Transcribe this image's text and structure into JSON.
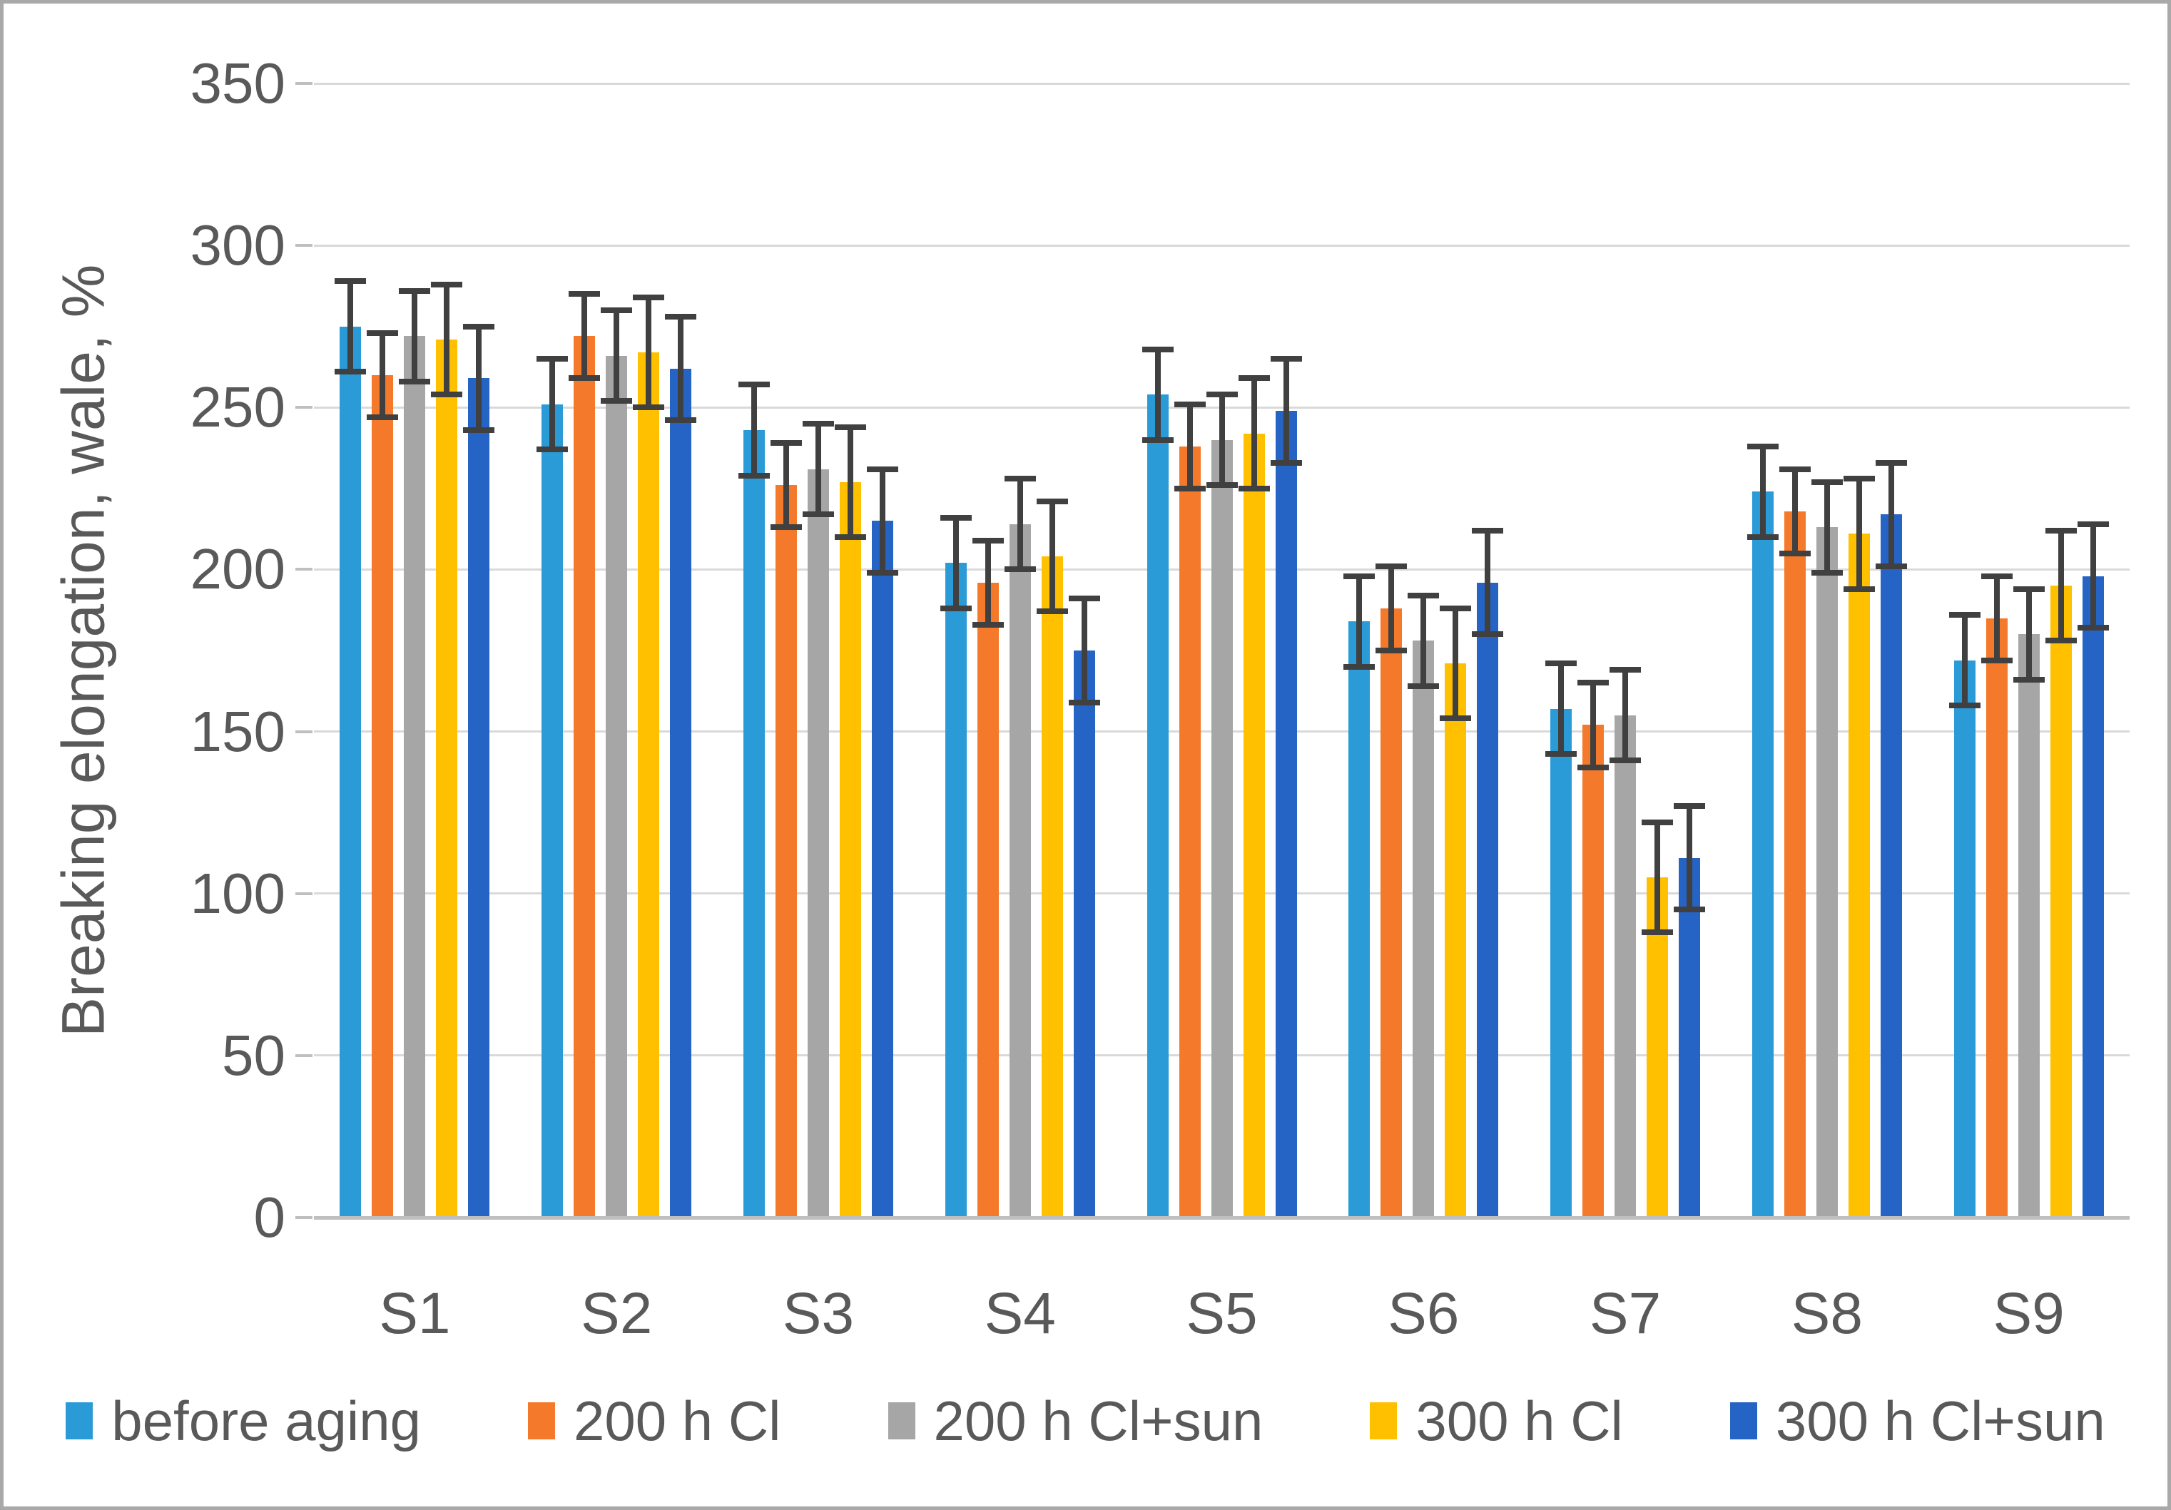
{
  "figure": {
    "background": "#ffffff",
    "border_color": "#a9a9a9"
  },
  "colors": {
    "error_bar": "#404040",
    "gridline": "#d9d9d9",
    "axis_line": "#bfbfbf",
    "text": "#595959"
  },
  "chart_data": {
    "type": "bar",
    "title": "",
    "xlabel": "",
    "ylabel": "Breaking elongation, wale, %",
    "ylim": [
      0,
      350
    ],
    "ytick_step": 50,
    "ytick_labels": [
      "0",
      "50",
      "100",
      "150",
      "200",
      "250",
      "300",
      "350"
    ],
    "grid": true,
    "legend_position": "bottom",
    "error_bars": true,
    "categories": [
      "S1",
      "S2",
      "S3",
      "S4",
      "S5",
      "S6",
      "S7",
      "S8",
      "S9"
    ],
    "series": [
      {
        "name": "before aging",
        "color": "#2b9bd7",
        "error": 14,
        "values": [
          275,
          251,
          243,
          202,
          254,
          184,
          157,
          224,
          172
        ]
      },
      {
        "name": "200 h Cl",
        "color": "#f4792a",
        "error": 13,
        "values": [
          260,
          272,
          226,
          196,
          238,
          188,
          152,
          218,
          185
        ]
      },
      {
        "name": "200 h Cl+sun",
        "color": "#a6a6a6",
        "error": 14,
        "values": [
          272,
          266,
          231,
          214,
          240,
          178,
          155,
          213,
          180
        ]
      },
      {
        "name": "300 h Cl",
        "color": "#ffc000",
        "error": 17,
        "values": [
          271,
          267,
          227,
          204,
          242,
          171,
          105,
          211,
          195
        ]
      },
      {
        "name": "300 h Cl+sun",
        "color": "#2563c4",
        "error": 16,
        "values": [
          259,
          262,
          215,
          175,
          249,
          196,
          111,
          217,
          198
        ]
      }
    ]
  }
}
